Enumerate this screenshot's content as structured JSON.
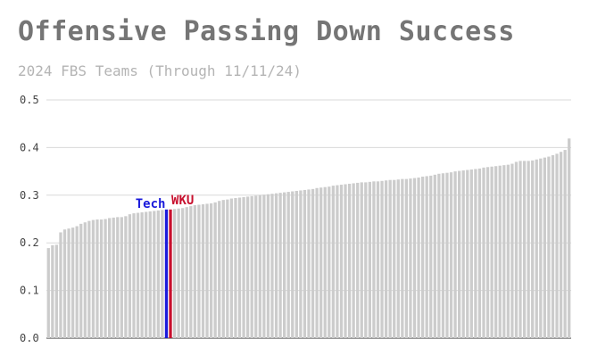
{
  "chart_data": {
    "type": "bar",
    "title": "Offensive Passing Down Success",
    "subtitle": "2024 FBS Teams (Through 11/11/24)",
    "xlabel": "",
    "ylabel": "",
    "ylim": [
      0,
      0.5
    ],
    "yticks": [
      "0.0",
      "0.1",
      "0.2",
      "0.3",
      "0.4",
      "0.5"
    ],
    "grid": true,
    "bar_color": "#cccccc",
    "grid_color": "#d9d9d9",
    "values": [
      0.189,
      0.195,
      0.196,
      0.222,
      0.228,
      0.23,
      0.232,
      0.235,
      0.24,
      0.243,
      0.246,
      0.248,
      0.249,
      0.249,
      0.25,
      0.252,
      0.253,
      0.254,
      0.254,
      0.256,
      0.26,
      0.262,
      0.263,
      0.264,
      0.265,
      0.266,
      0.267,
      0.268,
      0.269,
      0.27,
      0.27,
      0.271,
      0.272,
      0.273,
      0.275,
      0.277,
      0.279,
      0.28,
      0.281,
      0.282,
      0.283,
      0.285,
      0.288,
      0.29,
      0.291,
      0.293,
      0.294,
      0.295,
      0.296,
      0.297,
      0.298,
      0.299,
      0.3,
      0.301,
      0.302,
      0.303,
      0.304,
      0.305,
      0.306,
      0.307,
      0.308,
      0.309,
      0.31,
      0.311,
      0.312,
      0.313,
      0.315,
      0.316,
      0.317,
      0.318,
      0.32,
      0.321,
      0.322,
      0.323,
      0.324,
      0.325,
      0.326,
      0.327,
      0.327,
      0.328,
      0.329,
      0.329,
      0.33,
      0.331,
      0.332,
      0.332,
      0.333,
      0.334,
      0.334,
      0.335,
      0.336,
      0.337,
      0.339,
      0.34,
      0.341,
      0.343,
      0.345,
      0.346,
      0.347,
      0.348,
      0.35,
      0.351,
      0.352,
      0.353,
      0.354,
      0.355,
      0.356,
      0.358,
      0.359,
      0.36,
      0.361,
      0.362,
      0.363,
      0.364,
      0.366,
      0.37,
      0.372,
      0.372,
      0.372,
      0.373,
      0.375,
      0.377,
      0.379,
      0.381,
      0.384,
      0.387,
      0.391,
      0.395,
      0.419
    ],
    "highlights": [
      {
        "label": "Tech",
        "index": 29,
        "color": "#1a1adb"
      },
      {
        "label": "WKU",
        "index": 30,
        "color": "#c8102e"
      }
    ]
  }
}
